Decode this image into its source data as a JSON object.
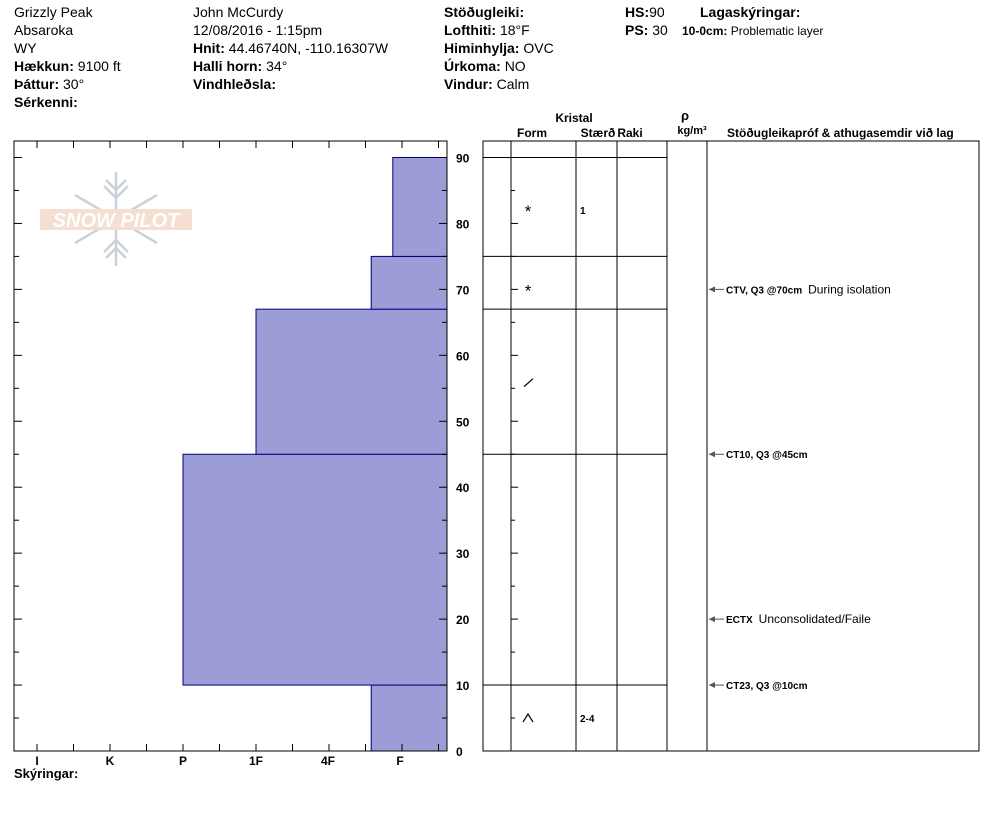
{
  "location": {
    "name": "Grizzly Peak",
    "range": "Absaroka",
    "state": "WY",
    "elevation_label": "Hækkun:",
    "elevation_value": "9100 ft",
    "aspect_label": "Þáttur:",
    "aspect_value": "30°",
    "specifics_label": "Sérkenni:"
  },
  "observer": {
    "name": "John McCurdy",
    "datetime": "12/08/2016 - 1:15pm",
    "coords_label": "Hnit:",
    "coords_value": "44.46740N, -110.16307W",
    "slope_label": "Halli horn:",
    "slope_value": "34°",
    "wind_loading_label": "Vindhleðsla:"
  },
  "conditions": {
    "stability_label": "Stöðugleiki:",
    "air_temp_label": "Lofthiti:",
    "air_temp_value": "18°F",
    "sky_label": "Himinhylja:",
    "sky_value": "OVC",
    "precip_label": "Úrkoma:",
    "precip_value": "NO",
    "wind_label": "Vindur:",
    "wind_value": "Calm"
  },
  "depths": {
    "hs_label": "HS:",
    "hs_value": "90",
    "ps_label": "PS:",
    "ps_value": "30"
  },
  "layer_notes": {
    "title": "Lagaskýringar:",
    "items": [
      {
        "range": "10-0cm:",
        "text": "Problematic layer"
      }
    ]
  },
  "logo_text": "SNOW PILOT",
  "columns": {
    "crystal": "Kristal",
    "form": "Form",
    "size": "Stærð",
    "moisture": "Raki",
    "density_symbol": "ρ",
    "density_unit": "kg/m³",
    "tests": "Stöðugleikapróf & athugasemdir við lag"
  },
  "comments_label": "Skýringar:",
  "colors": {
    "hardness_fill": "#9c9cd6",
    "hardness_stroke": "#000080",
    "arrow": "#555555"
  },
  "chart_data": {
    "type": "bar",
    "orientation": "horizontal-profile",
    "y_axis": {
      "label": "",
      "range": [
        0,
        90
      ],
      "ticks": [
        0,
        10,
        20,
        30,
        40,
        50,
        60,
        70,
        80,
        90
      ]
    },
    "x_axis": {
      "label": "",
      "hardness_scale": [
        "I",
        "K",
        "P",
        "1F",
        "4F",
        "F"
      ]
    },
    "layers": [
      {
        "bottom": 0,
        "top": 10,
        "hardness": "4F-F boundary",
        "hardness_index": 5.6,
        "form": "^",
        "size": "2-4"
      },
      {
        "bottom": 10,
        "top": 45,
        "hardness": "1F",
        "hardness_index": 3.0,
        "form": "",
        "size": ""
      },
      {
        "bottom": 45,
        "top": 67,
        "hardness": "4F",
        "hardness_index": 4.0,
        "form": "/",
        "size": ""
      },
      {
        "bottom": 67,
        "top": 75,
        "hardness": "4F-F boundary",
        "hardness_index": 5.6,
        "form": "*",
        "size": ""
      },
      {
        "bottom": 75,
        "top": 90,
        "hardness": "F+",
        "hardness_index": 5.9,
        "form": "*",
        "size": "1"
      }
    ],
    "form_symbols": [
      {
        "depth": 82,
        "symbol": "*",
        "size": "1"
      },
      {
        "depth": 70,
        "symbol": "*",
        "size": ""
      },
      {
        "depth": 56,
        "symbol": "/",
        "size": ""
      },
      {
        "depth": 5,
        "symbol": "^",
        "size": "2-4"
      }
    ],
    "tests": [
      {
        "depth": 70,
        "code": "CTV, Q3 @70cm",
        "note": "During isolation"
      },
      {
        "depth": 45,
        "code": "CT10, Q3 @45cm",
        "note": ""
      },
      {
        "depth": 20,
        "code": "ECTX",
        "note": "Unconsolidated/Faile"
      },
      {
        "depth": 10,
        "code": "CT23, Q3 @10cm",
        "note": ""
      }
    ]
  }
}
